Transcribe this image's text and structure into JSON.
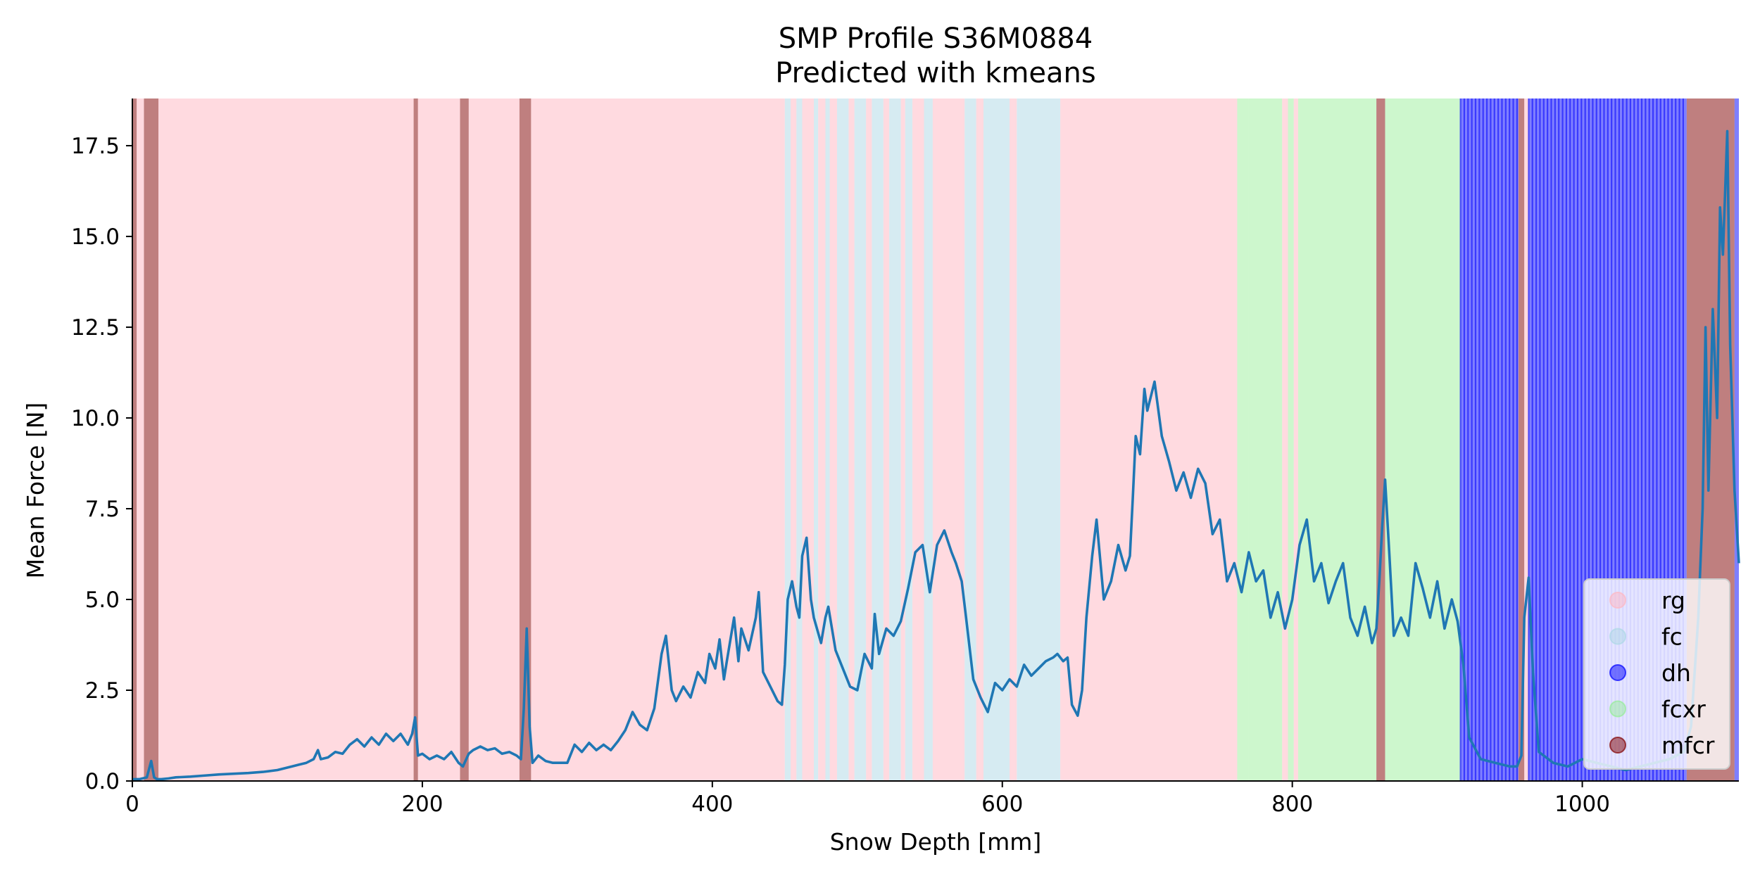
{
  "chart_data": {
    "type": "line",
    "title": "SMP Profile S36M0884",
    "subtitle": "Predicted with kmeans",
    "xlabel": "Snow Depth [mm]",
    "ylabel": "Mean Force [N]",
    "xlim": [
      0,
      1108
    ],
    "ylim": [
      0,
      18.8
    ],
    "x_ticks": [
      0,
      200,
      400,
      600,
      800,
      1000
    ],
    "y_ticks": [
      0.0,
      2.5,
      5.0,
      7.5,
      10.0,
      12.5,
      15.0,
      17.5
    ],
    "x_tick_labels": [
      "0",
      "200",
      "400",
      "600",
      "800",
      "1000"
    ],
    "y_tick_labels": [
      "0.0",
      "2.5",
      "5.0",
      "7.5",
      "10.0",
      "12.5",
      "15.0",
      "17.5"
    ],
    "grid": false,
    "legend_position": "lower-right",
    "line_color": "#1f77b4",
    "classes": [
      {
        "label": "rg",
        "color": "#ffb6c1",
        "alpha": 0.5
      },
      {
        "label": "fc",
        "color": "#add8e6",
        "alpha": 0.5
      },
      {
        "label": "dh",
        "color": "#0000ff",
        "alpha": 0.5
      },
      {
        "label": "fcxr",
        "color": "#90ee90",
        "alpha": 0.45
      },
      {
        "label": "mfcr",
        "color": "#800000",
        "alpha": 0.5
      }
    ],
    "label_segments": [
      {
        "start": 0,
        "end": 3,
        "label": "mfcr"
      },
      {
        "start": 3,
        "end": 8,
        "label": "rg"
      },
      {
        "start": 8,
        "end": 18,
        "label": "mfcr"
      },
      {
        "start": 18,
        "end": 194,
        "label": "rg"
      },
      {
        "start": 194,
        "end": 197,
        "label": "mfcr"
      },
      {
        "start": 197,
        "end": 226,
        "label": "rg"
      },
      {
        "start": 226,
        "end": 232,
        "label": "mfcr"
      },
      {
        "start": 232,
        "end": 267,
        "label": "rg"
      },
      {
        "start": 267,
        "end": 275,
        "label": "mfcr"
      },
      {
        "start": 275,
        "end": 450,
        "label": "rg"
      },
      {
        "start": 450,
        "end": 454,
        "label": "fc"
      },
      {
        "start": 454,
        "end": 458,
        "label": "rg"
      },
      {
        "start": 458,
        "end": 462,
        "label": "fc"
      },
      {
        "start": 462,
        "end": 470,
        "label": "rg"
      },
      {
        "start": 470,
        "end": 473,
        "label": "fc"
      },
      {
        "start": 473,
        "end": 478,
        "label": "rg"
      },
      {
        "start": 478,
        "end": 481,
        "label": "fc"
      },
      {
        "start": 481,
        "end": 486,
        "label": "rg"
      },
      {
        "start": 486,
        "end": 494,
        "label": "fc"
      },
      {
        "start": 494,
        "end": 498,
        "label": "rg"
      },
      {
        "start": 498,
        "end": 506,
        "label": "fc"
      },
      {
        "start": 506,
        "end": 510,
        "label": "rg"
      },
      {
        "start": 510,
        "end": 518,
        "label": "fc"
      },
      {
        "start": 518,
        "end": 522,
        "label": "rg"
      },
      {
        "start": 522,
        "end": 530,
        "label": "fc"
      },
      {
        "start": 530,
        "end": 533,
        "label": "rg"
      },
      {
        "start": 533,
        "end": 538,
        "label": "fc"
      },
      {
        "start": 538,
        "end": 546,
        "label": "rg"
      },
      {
        "start": 546,
        "end": 552,
        "label": "fc"
      },
      {
        "start": 552,
        "end": 574,
        "label": "rg"
      },
      {
        "start": 574,
        "end": 582,
        "label": "fc"
      },
      {
        "start": 582,
        "end": 587,
        "label": "rg"
      },
      {
        "start": 587,
        "end": 605,
        "label": "fc"
      },
      {
        "start": 605,
        "end": 610,
        "label": "rg"
      },
      {
        "start": 610,
        "end": 640,
        "label": "fc"
      },
      {
        "start": 640,
        "end": 762,
        "label": "rg"
      },
      {
        "start": 762,
        "end": 770,
        "label": "fcxr"
      },
      {
        "start": 770,
        "end": 793,
        "label": "fcxr"
      },
      {
        "start": 793,
        "end": 797,
        "label": "rg"
      },
      {
        "start": 797,
        "end": 801,
        "label": "fcxr"
      },
      {
        "start": 801,
        "end": 804,
        "label": "rg"
      },
      {
        "start": 804,
        "end": 858,
        "label": "fcxr"
      },
      {
        "start": 858,
        "end": 864,
        "label": "mfcr"
      },
      {
        "start": 864,
        "end": 916,
        "label": "fcxr"
      },
      {
        "start": 916,
        "end": 956,
        "label": "dh"
      },
      {
        "start": 956,
        "end": 960,
        "label": "mfcr"
      },
      {
        "start": 960,
        "end": 963,
        "label": "rg"
      },
      {
        "start": 963,
        "end": 1072,
        "label": "dh"
      },
      {
        "start": 1072,
        "end": 1105,
        "label": "mfcr"
      },
      {
        "start": 1105,
        "end": 1108,
        "label": "dh"
      }
    ],
    "series": [
      {
        "x": [
          0,
          5,
          10,
          13,
          15,
          17,
          20,
          25,
          30,
          40,
          50,
          60,
          70,
          80,
          90,
          100,
          110,
          115,
          120,
          125,
          128,
          130,
          135,
          140,
          145,
          150,
          155,
          160,
          165,
          170,
          175,
          180,
          185,
          190,
          193,
          195,
          197,
          200,
          205,
          210,
          215,
          220,
          225,
          228,
          232,
          235,
          240,
          245,
          250,
          255,
          260,
          265,
          268,
          270,
          272,
          274,
          276,
          280,
          285,
          290,
          300,
          305,
          310,
          315,
          320,
          325,
          330,
          335,
          340,
          345,
          350,
          355,
          360,
          365,
          368,
          372,
          375,
          380,
          385,
          390,
          395,
          398,
          402,
          405,
          408,
          410,
          415,
          418,
          420,
          425,
          430,
          432,
          435,
          440,
          445,
          448,
          450,
          452,
          455,
          458,
          460,
          462,
          465,
          468,
          470,
          475,
          478,
          480,
          485,
          490,
          495,
          500,
          505,
          510,
          512,
          515,
          520,
          525,
          530,
          535,
          540,
          545,
          550,
          555,
          560,
          565,
          568,
          572,
          575,
          580,
          585,
          590,
          595,
          600,
          605,
          610,
          615,
          620,
          625,
          630,
          635,
          638,
          642,
          645,
          648,
          652,
          655,
          658,
          662,
          665,
          670,
          675,
          680,
          685,
          688,
          690,
          692,
          695,
          698,
          700,
          705,
          710,
          715,
          720,
          725,
          730,
          735,
          740,
          745,
          750,
          755,
          760,
          765,
          770,
          775,
          780,
          785,
          790,
          795,
          800,
          805,
          810,
          815,
          820,
          825,
          830,
          835,
          840,
          845,
          850,
          855,
          858,
          860,
          862,
          864,
          867,
          870,
          875,
          880,
          885,
          890,
          895,
          900,
          905,
          910,
          914,
          918,
          922,
          930,
          940,
          950,
          955,
          958,
          960,
          963,
          966,
          970,
          980,
          990,
          1000,
          1010,
          1020,
          1030,
          1040,
          1050,
          1060,
          1070,
          1075,
          1080,
          1083,
          1085,
          1087,
          1090,
          1093,
          1095,
          1097,
          1100,
          1102,
          1105,
          1108
        ],
        "y": [
          0.05,
          0.05,
          0.1,
          0.55,
          0.1,
          0.05,
          0.05,
          0.07,
          0.1,
          0.12,
          0.15,
          0.18,
          0.2,
          0.22,
          0.25,
          0.3,
          0.4,
          0.45,
          0.5,
          0.6,
          0.85,
          0.6,
          0.65,
          0.8,
          0.75,
          1.0,
          1.15,
          0.95,
          1.2,
          1.0,
          1.3,
          1.1,
          1.3,
          1.0,
          1.3,
          1.75,
          0.7,
          0.75,
          0.6,
          0.7,
          0.6,
          0.8,
          0.5,
          0.4,
          0.75,
          0.85,
          0.95,
          0.85,
          0.9,
          0.75,
          0.8,
          0.7,
          0.6,
          2.0,
          4.2,
          1.5,
          0.5,
          0.7,
          0.55,
          0.5,
          0.5,
          1.0,
          0.8,
          1.05,
          0.85,
          1.0,
          0.85,
          1.1,
          1.4,
          1.9,
          1.55,
          1.4,
          2.0,
          3.5,
          4.0,
          2.5,
          2.2,
          2.6,
          2.3,
          3.0,
          2.7,
          3.5,
          3.1,
          3.9,
          2.8,
          3.3,
          4.5,
          3.3,
          4.2,
          3.6,
          4.5,
          5.2,
          3.0,
          2.6,
          2.2,
          2.1,
          3.2,
          5.0,
          5.5,
          4.8,
          4.5,
          6.2,
          6.7,
          5.0,
          4.5,
          3.8,
          4.5,
          4.8,
          3.6,
          3.1,
          2.6,
          2.5,
          3.5,
          3.1,
          4.6,
          3.5,
          4.2,
          4.0,
          4.4,
          5.3,
          6.3,
          6.5,
          5.2,
          6.5,
          6.9,
          6.3,
          6.0,
          5.5,
          4.5,
          2.8,
          2.3,
          1.9,
          2.7,
          2.5,
          2.8,
          2.6,
          3.2,
          2.9,
          3.1,
          3.3,
          3.4,
          3.5,
          3.3,
          3.4,
          2.1,
          1.8,
          2.5,
          4.5,
          6.2,
          7.2,
          5.0,
          5.5,
          6.5,
          5.8,
          6.2,
          7.8,
          9.5,
          9.0,
          10.8,
          10.2,
          11.0,
          9.5,
          8.8,
          8.0,
          8.5,
          7.8,
          8.6,
          8.2,
          6.8,
          7.2,
          5.5,
          6.0,
          5.2,
          6.3,
          5.5,
          5.8,
          4.5,
          5.2,
          4.2,
          5.0,
          6.5,
          7.2,
          5.5,
          6.0,
          4.9,
          5.5,
          6.0,
          4.5,
          4.0,
          4.8,
          3.8,
          4.2,
          5.5,
          7.0,
          8.3,
          6.2,
          4.0,
          4.5,
          4.0,
          6.0,
          5.3,
          4.5,
          5.5,
          4.2,
          5.0,
          4.4,
          3.2,
          1.2,
          0.6,
          0.5,
          0.4,
          0.4,
          0.7,
          4.5,
          5.6,
          3.0,
          0.8,
          0.5,
          0.4,
          0.6,
          0.5,
          0.4,
          0.3,
          0.4,
          0.5,
          0.6,
          0.8,
          1.5,
          4.5,
          7.5,
          12.5,
          8.0,
          13.0,
          10.0,
          15.8,
          14.5,
          17.9,
          12.0,
          8.0,
          6.0
        ]
      }
    ]
  }
}
